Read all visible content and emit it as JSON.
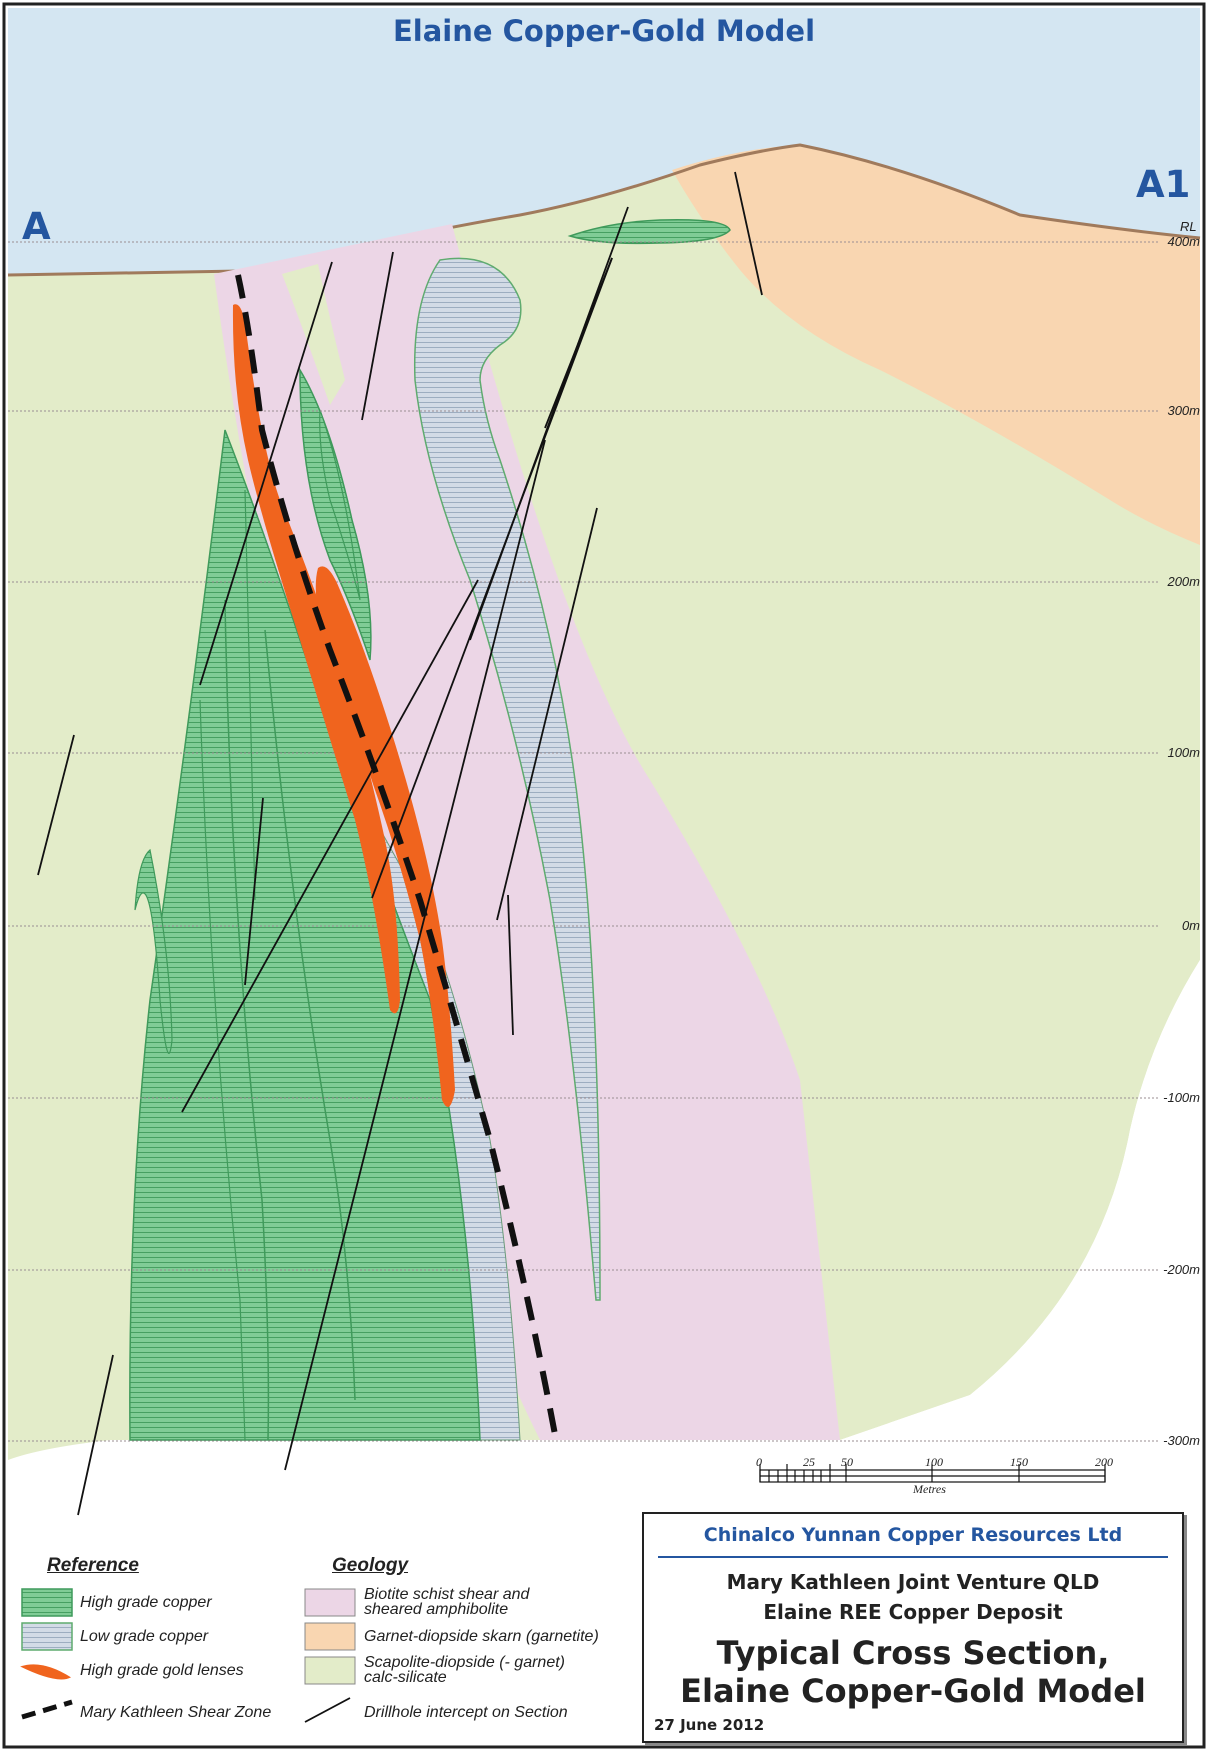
{
  "title": "Elaine Copper-Gold Model",
  "section": {
    "start_label": "A",
    "end_label": "A1"
  },
  "elevation_axis": {
    "label": "RL",
    "ticks": [
      "400m",
      "300m",
      "200m",
      "100m",
      "0m",
      "-100m",
      "-200m",
      "-300m"
    ]
  },
  "scale_bar": {
    "ticks": [
      "0",
      "25",
      "50",
      "100",
      "150",
      "200"
    ],
    "unit": "Metres"
  },
  "legend": {
    "reference_heading": "Reference",
    "reference_items": [
      {
        "label": "High grade copper",
        "symbol": "high-grade-copper"
      },
      {
        "label": "Low grade copper",
        "symbol": "low-grade-copper"
      },
      {
        "label": "High grade gold lenses",
        "symbol": "gold-lens"
      },
      {
        "label": "Mary Kathleen Shear Zone",
        "symbol": "shear-zone"
      }
    ],
    "geology_heading": "Geology",
    "geology_items": [
      {
        "label_line1": "Biotite schist shear and",
        "label_line2": "sheared amphibolite",
        "color": "#ecd6e6"
      },
      {
        "label_line1": "Garnet-diopside skarn (garnetite)",
        "label_line2": "",
        "color": "#f9d6b1"
      },
      {
        "label_line1": "Scapolite-diopside (- garnet)",
        "label_line2": "calc-silicate",
        "color": "#e3ecc9"
      },
      {
        "label_line1": "Drillhole intercept on Section",
        "label_line2": "",
        "color": ""
      }
    ]
  },
  "title_block": {
    "company": "Chinalco Yunnan Copper Resources Ltd",
    "venture": "Mary Kathleen Joint Venture QLD",
    "deposit": "Elaine REE Copper Deposit",
    "title_line1": "Typical Cross Section,",
    "title_line2": "Elaine Copper-Gold Model",
    "date": "27 June 2012"
  },
  "colors": {
    "sky": "#d4e6f2",
    "calc_silicate": "#e3ecc9",
    "schist": "#ecd6e6",
    "skarn": "#f9d6b1",
    "high_grade_copper": "#6cc08a",
    "low_grade_copper": "#d3dfe9",
    "gold": "#f0641e",
    "title_blue": "#2456a0"
  }
}
